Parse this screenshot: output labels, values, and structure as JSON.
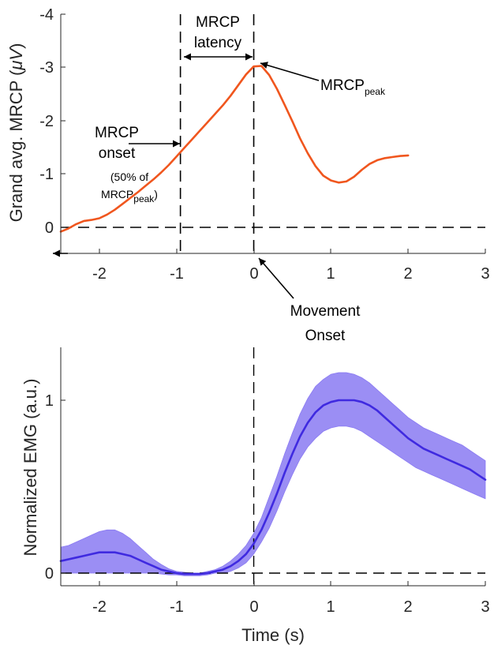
{
  "chart_data": [
    {
      "type": "line",
      "title": "",
      "xlabel": "",
      "ylabel_main": "Grand avg. MRCP (",
      "ylabel_unit": "μV",
      "ylabel_close": ")",
      "xlim": [
        -2.5,
        3
      ],
      "ylim": [
        -4,
        0.5
      ],
      "y_reversed": true,
      "x_ticks": [
        -2,
        -1,
        0,
        1,
        2,
        3
      ],
      "x_tick_labels": [
        "-2",
        "-1",
        "0",
        "1",
        "2",
        "3"
      ],
      "y_ticks": [
        -4,
        -3,
        -2,
        -1,
        0
      ],
      "y_tick_labels": [
        "-4",
        "-3",
        "-2",
        "-1",
        "0"
      ],
      "series": [
        {
          "color": "#F0561E",
          "x": [
            -2.5,
            -2.4,
            -2.3,
            -2.2,
            -2.1,
            -2.0,
            -1.9,
            -1.8,
            -1.7,
            -1.6,
            -1.5,
            -1.4,
            -1.3,
            -1.2,
            -1.1,
            -1.0,
            -0.9,
            -0.8,
            -0.7,
            -0.6,
            -0.5,
            -0.4,
            -0.3,
            -0.2,
            -0.1,
            0.0,
            0.1,
            0.2,
            0.3,
            0.4,
            0.5,
            0.6,
            0.7,
            0.8,
            0.9,
            1.0,
            1.1,
            1.2,
            1.3,
            1.4,
            1.5,
            1.6,
            1.7,
            1.8,
            1.9,
            2.0
          ],
          "y": [
            0.08,
            0.02,
            -0.06,
            -0.12,
            -0.14,
            -0.17,
            -0.24,
            -0.33,
            -0.44,
            -0.55,
            -0.66,
            -0.78,
            -0.9,
            -1.03,
            -1.17,
            -1.33,
            -1.49,
            -1.65,
            -1.81,
            -1.97,
            -2.13,
            -2.29,
            -2.47,
            -2.67,
            -2.87,
            -3.02,
            -3.03,
            -2.86,
            -2.6,
            -2.3,
            -1.99,
            -1.67,
            -1.39,
            -1.15,
            -0.97,
            -0.88,
            -0.84,
            -0.86,
            -0.95,
            -1.08,
            -1.19,
            -1.26,
            -1.3,
            -1.32,
            -1.34,
            -1.35
          ]
        }
      ],
      "reference_lines": {
        "horizontal_y": 0,
        "vertical_x": [
          -0.95,
          0
        ]
      },
      "annotations": {
        "latency_line1": "MRCP",
        "latency_line2": "latency",
        "peak_main": "MRCP",
        "peak_sub": "peak",
        "onset_line1": "MRCP",
        "onset_line2": "onset",
        "onset_note1": "(50% of",
        "onset_note2_main": "MRCP",
        "onset_note2_sub": "peak",
        "onset_note2_close": ")",
        "movement_line1": "Movement",
        "movement_line2": "Onset"
      }
    },
    {
      "type": "area",
      "title": "",
      "xlabel": "Time (s)",
      "ylabel": "Normalized EMG (a.u.)",
      "xlim": [
        -2.5,
        3
      ],
      "ylim": [
        -0.1,
        1.3
      ],
      "x_ticks": [
        -2,
        -1,
        0,
        1,
        2,
        3
      ],
      "x_tick_labels": [
        "-2",
        "-1",
        "0",
        "1",
        "2",
        "3"
      ],
      "y_ticks": [
        0,
        1
      ],
      "y_tick_labels": [
        "0",
        "1"
      ],
      "series": [
        {
          "color": "#3F2AE0",
          "band_color": "#8A7AF2",
          "x": [
            -2.5,
            -2.4,
            -2.3,
            -2.2,
            -2.1,
            -2.0,
            -1.9,
            -1.8,
            -1.7,
            -1.6,
            -1.5,
            -1.4,
            -1.3,
            -1.2,
            -1.1,
            -1.0,
            -0.9,
            -0.8,
            -0.7,
            -0.6,
            -0.5,
            -0.4,
            -0.3,
            -0.2,
            -0.1,
            0.0,
            0.1,
            0.2,
            0.3,
            0.4,
            0.5,
            0.6,
            0.7,
            0.8,
            0.9,
            1.0,
            1.1,
            1.2,
            1.3,
            1.4,
            1.5,
            1.6,
            1.7,
            1.8,
            1.9,
            2.0,
            2.1,
            2.2,
            2.3,
            2.4,
            2.5,
            2.6,
            2.7,
            2.8,
            2.9,
            3.0
          ],
          "mean": [
            0.07,
            0.08,
            0.09,
            0.1,
            0.11,
            0.12,
            0.12,
            0.12,
            0.11,
            0.1,
            0.08,
            0.06,
            0.04,
            0.02,
            0.01,
            0.0,
            -0.005,
            -0.005,
            -0.005,
            0.0,
            0.01,
            0.02,
            0.04,
            0.07,
            0.11,
            0.17,
            0.25,
            0.35,
            0.46,
            0.58,
            0.69,
            0.79,
            0.87,
            0.93,
            0.97,
            0.99,
            1.0,
            1.0,
            1.0,
            0.99,
            0.97,
            0.94,
            0.9,
            0.86,
            0.82,
            0.78,
            0.75,
            0.72,
            0.7,
            0.68,
            0.66,
            0.64,
            0.62,
            0.6,
            0.57,
            0.54
          ],
          "upper": [
            0.15,
            0.16,
            0.18,
            0.2,
            0.22,
            0.24,
            0.25,
            0.25,
            0.23,
            0.2,
            0.16,
            0.12,
            0.08,
            0.05,
            0.025,
            0.01,
            0.005,
            0.0,
            0.0,
            0.01,
            0.02,
            0.04,
            0.07,
            0.11,
            0.16,
            0.23,
            0.32,
            0.44,
            0.56,
            0.69,
            0.81,
            0.92,
            1.01,
            1.08,
            1.12,
            1.15,
            1.16,
            1.16,
            1.15,
            1.13,
            1.1,
            1.06,
            1.02,
            0.98,
            0.94,
            0.9,
            0.87,
            0.84,
            0.82,
            0.8,
            0.78,
            0.76,
            0.74,
            0.71,
            0.68,
            0.65
          ],
          "lower": [
            0.0,
            0.0,
            0.0,
            0.0,
            0.0,
            0.0,
            0.0,
            0.0,
            0.0,
            0.0,
            0.0,
            0.0,
            0.0,
            -0.005,
            -0.01,
            -0.01,
            -0.015,
            -0.015,
            -0.015,
            -0.01,
            0.0,
            0.0,
            0.01,
            0.03,
            0.06,
            0.11,
            0.18,
            0.26,
            0.36,
            0.47,
            0.57,
            0.66,
            0.73,
            0.78,
            0.82,
            0.84,
            0.85,
            0.85,
            0.84,
            0.82,
            0.79,
            0.76,
            0.73,
            0.7,
            0.67,
            0.64,
            0.61,
            0.59,
            0.57,
            0.55,
            0.53,
            0.51,
            0.49,
            0.47,
            0.45,
            0.43
          ]
        }
      ],
      "reference_lines": {
        "horizontal_y": 0,
        "vertical_x": [
          0
        ]
      }
    }
  ]
}
